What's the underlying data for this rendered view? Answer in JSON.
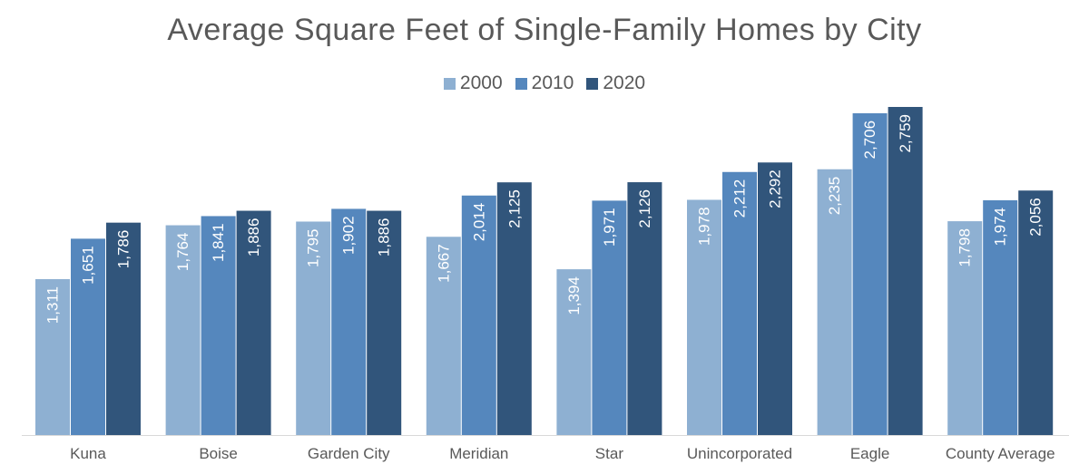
{
  "chart_data": {
    "type": "bar",
    "title": "Average Square Feet of Single-Family Homes by City",
    "xlabel": "",
    "ylabel": "",
    "categories": [
      "Kuna",
      "Boise",
      "Garden City",
      "Meridian",
      "Star",
      "Unincorporated",
      "Eagle",
      "County Average"
    ],
    "series": [
      {
        "name": "2000",
        "color": "#8eb0d2",
        "values": [
          1311,
          1764,
          1795,
          1667,
          1394,
          1978,
          2235,
          1798
        ]
      },
      {
        "name": "2010",
        "color": "#5587bd",
        "values": [
          1651,
          1841,
          1902,
          2014,
          1971,
          2212,
          2706,
          1974
        ]
      },
      {
        "name": "2020",
        "color": "#31557b",
        "values": [
          1786,
          1886,
          1886,
          2125,
          2126,
          2292,
          2759,
          2056
        ]
      }
    ],
    "value_labels": [
      [
        "1,311",
        "1,764",
        "1,795",
        "1,667",
        "1,394",
        "1,978",
        "2,235",
        "1,798"
      ],
      [
        "1,651",
        "1,841",
        "1,902",
        "2,014",
        "1,971",
        "2,212",
        "2,706",
        "1,974"
      ],
      [
        "1,786",
        "1,886",
        "1,886",
        "2,125",
        "2,126",
        "2,292",
        "2,759",
        "2,056"
      ]
    ],
    "ylim": [
      0,
      2800
    ],
    "grid": false,
    "legend_position": "top-center",
    "data_labels": "inside-end-rotated"
  }
}
